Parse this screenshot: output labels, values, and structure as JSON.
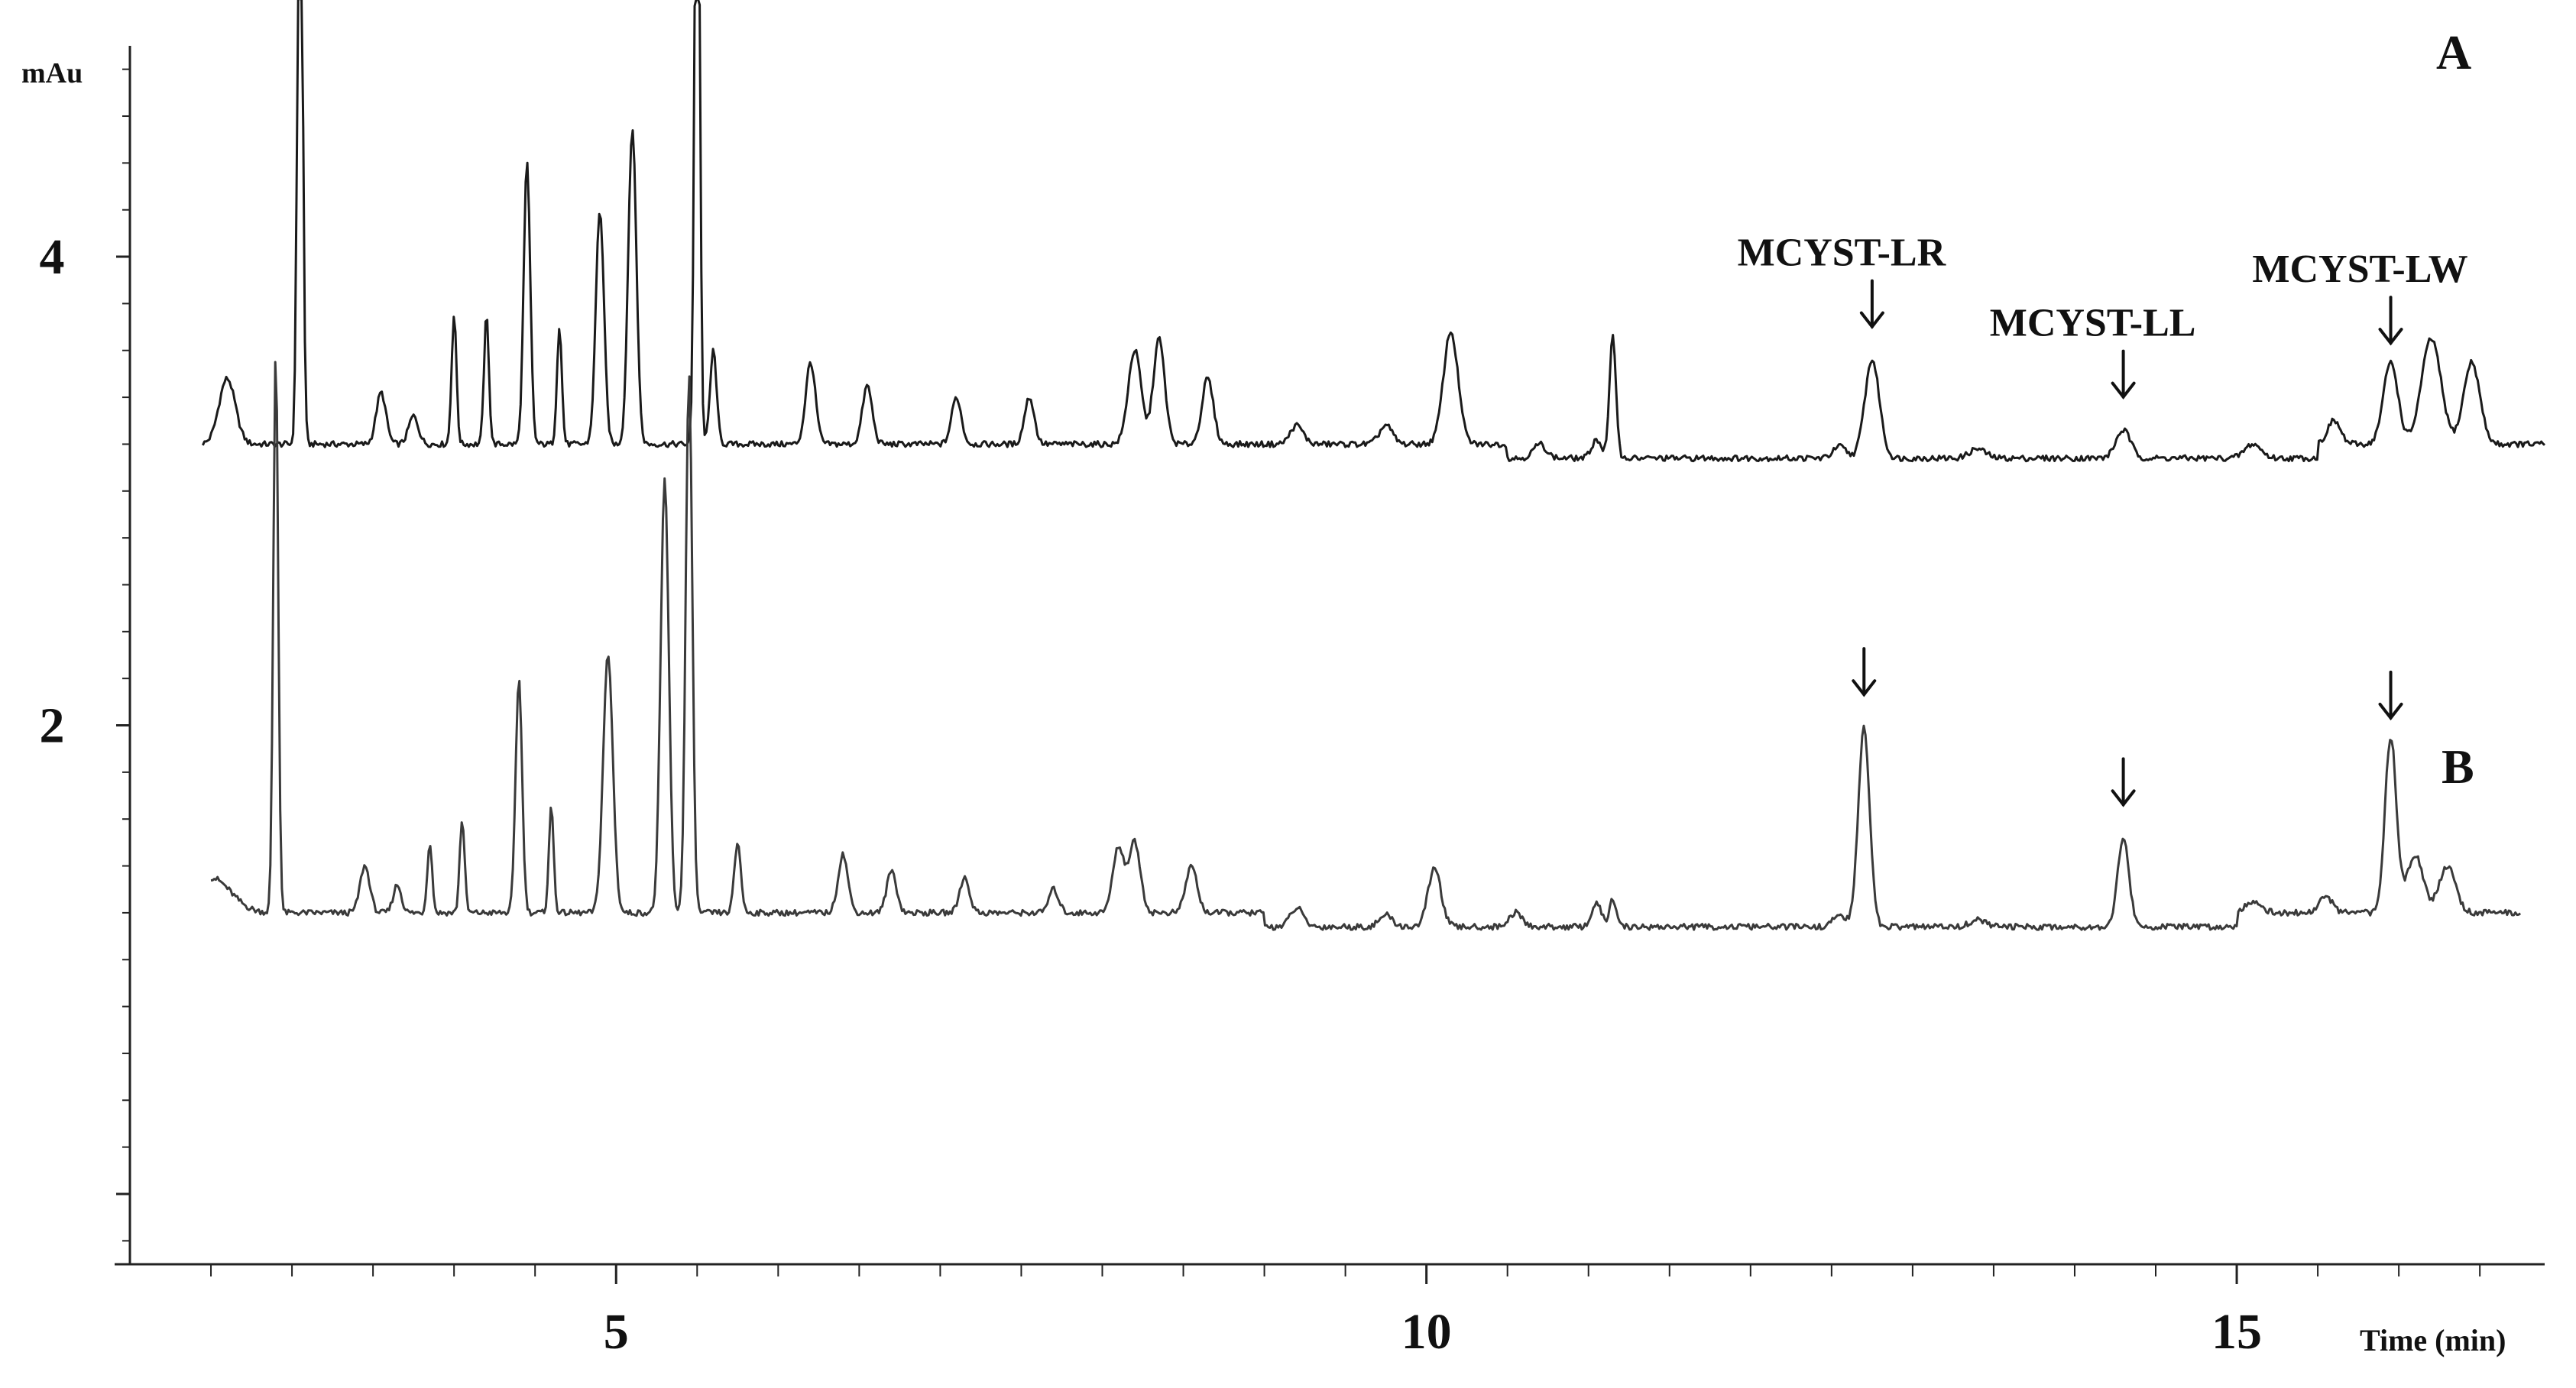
{
  "chart_data": {
    "type": "line",
    "title": "",
    "xlabel": "Time (min)",
    "ylabel": "mAu",
    "xlim": [
      2.0,
      16.9
    ],
    "ylim": [
      -0.3,
      4.9
    ],
    "x_ticks": [
      5,
      10,
      15
    ],
    "y_ticks": [
      2,
      4
    ],
    "grid": false,
    "legend": "none",
    "series": [
      {
        "name": "A",
        "label_position": "top-right",
        "baseline": 3.2,
        "values_note": "chromatogram trace",
        "peaks": [
          [
            2.6,
            0.28,
            0.05
          ],
          [
            3.05,
            3.1,
            0.015
          ],
          [
            3.55,
            0.22,
            0.03
          ],
          [
            3.75,
            0.12,
            0.03
          ],
          [
            4.0,
            0.55,
            0.015
          ],
          [
            4.2,
            0.55,
            0.015
          ],
          [
            4.45,
            1.2,
            0.02
          ],
          [
            4.65,
            0.5,
            0.015
          ],
          [
            4.9,
            1.0,
            0.025
          ],
          [
            5.1,
            1.35,
            0.025
          ],
          [
            5.5,
            3.2,
            0.015
          ],
          [
            5.6,
            0.4,
            0.02
          ],
          [
            6.2,
            0.35,
            0.03
          ],
          [
            6.55,
            0.25,
            0.03
          ],
          [
            7.1,
            0.2,
            0.03
          ],
          [
            7.55,
            0.2,
            0.03
          ],
          [
            8.2,
            0.4,
            0.04
          ],
          [
            8.35,
            0.45,
            0.035
          ],
          [
            8.65,
            0.28,
            0.035
          ],
          [
            9.2,
            0.08,
            0.04
          ],
          [
            9.75,
            0.08,
            0.04
          ],
          [
            10.15,
            0.48,
            0.045
          ],
          [
            10.7,
            0.06,
            0.04
          ],
          [
            11.05,
            0.08,
            0.03
          ],
          [
            11.15,
            0.52,
            0.02
          ],
          [
            12.55,
            0.05,
            0.04
          ],
          [
            12.75,
            0.42,
            0.045
          ],
          [
            13.4,
            0.04,
            0.05
          ],
          [
            14.3,
            0.12,
            0.045
          ],
          [
            15.1,
            0.06,
            0.05
          ],
          [
            15.6,
            0.1,
            0.04
          ],
          [
            15.95,
            0.35,
            0.045
          ],
          [
            16.2,
            0.45,
            0.06
          ],
          [
            16.45,
            0.35,
            0.05
          ]
        ]
      },
      {
        "name": "B",
        "label_position": "right",
        "baseline": 1.2,
        "peaks": [
          [
            2.5,
            0.15,
            0.12
          ],
          [
            2.9,
            2.4,
            0.015
          ],
          [
            3.45,
            0.2,
            0.03
          ],
          [
            3.65,
            0.12,
            0.025
          ],
          [
            3.85,
            0.3,
            0.015
          ],
          [
            4.05,
            0.4,
            0.015
          ],
          [
            4.4,
            1.0,
            0.02
          ],
          [
            4.6,
            0.45,
            0.015
          ],
          [
            4.95,
            1.1,
            0.03
          ],
          [
            5.3,
            1.85,
            0.025
          ],
          [
            5.45,
            2.3,
            0.02
          ],
          [
            5.75,
            0.3,
            0.02
          ],
          [
            6.4,
            0.25,
            0.03
          ],
          [
            6.7,
            0.18,
            0.03
          ],
          [
            7.15,
            0.15,
            0.03
          ],
          [
            7.7,
            0.1,
            0.03
          ],
          [
            8.1,
            0.28,
            0.035
          ],
          [
            8.2,
            0.3,
            0.035
          ],
          [
            8.55,
            0.2,
            0.035
          ],
          [
            9.2,
            0.08,
            0.04
          ],
          [
            9.75,
            0.05,
            0.04
          ],
          [
            10.05,
            0.25,
            0.04
          ],
          [
            10.55,
            0.06,
            0.04
          ],
          [
            11.05,
            0.1,
            0.03
          ],
          [
            11.15,
            0.12,
            0.02
          ],
          [
            12.55,
            0.05,
            0.04
          ],
          [
            12.7,
            0.85,
            0.035
          ],
          [
            13.4,
            0.03,
            0.05
          ],
          [
            14.3,
            0.38,
            0.035
          ],
          [
            15.1,
            0.05,
            0.05
          ],
          [
            15.55,
            0.07,
            0.04
          ],
          [
            15.95,
            0.75,
            0.035
          ],
          [
            16.1,
            0.25,
            0.05
          ],
          [
            16.3,
            0.2,
            0.05
          ]
        ]
      }
    ],
    "annotations": [
      {
        "text": "MCYST-LR",
        "x": 12.75,
        "series": "A"
      },
      {
        "text": "MCYST-LL",
        "x": 14.3,
        "series": "A"
      },
      {
        "text": "MCYST-LW",
        "x": 15.95,
        "series": "A"
      },
      {
        "text": "",
        "x": 12.7,
        "series": "B"
      },
      {
        "text": "",
        "x": 14.3,
        "series": "B"
      },
      {
        "text": "",
        "x": 15.95,
        "series": "B"
      }
    ]
  }
}
